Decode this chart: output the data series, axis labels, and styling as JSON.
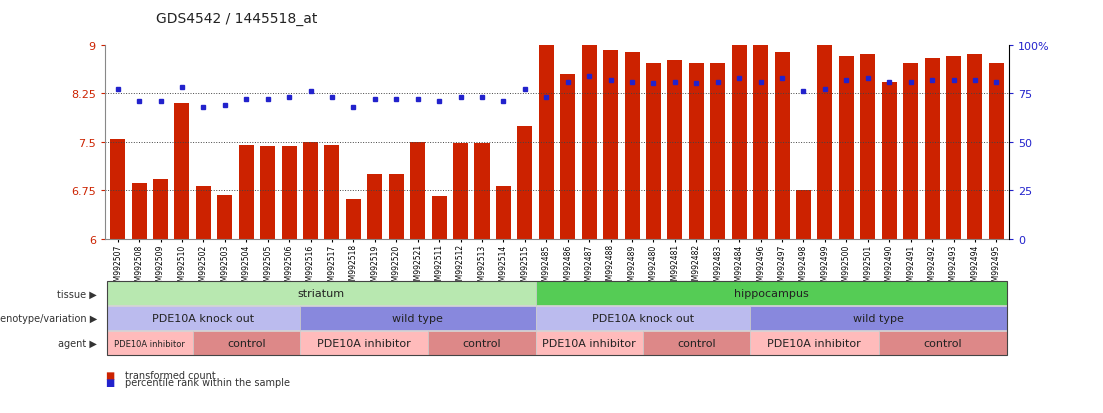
{
  "title": "GDS4542 / 1445518_at",
  "samples": [
    "GSM992507",
    "GSM992508",
    "GSM992509",
    "GSM992510",
    "GSM992502",
    "GSM992503",
    "GSM992504",
    "GSM992505",
    "GSM992506",
    "GSM992516",
    "GSM992517",
    "GSM992518",
    "GSM992519",
    "GSM992520",
    "GSM992521",
    "GSM992511",
    "GSM992512",
    "GSM992513",
    "GSM992514",
    "GSM992515",
    "GSM992485",
    "GSM992486",
    "GSM992487",
    "GSM992488",
    "GSM992489",
    "GSM992480",
    "GSM992481",
    "GSM992482",
    "GSM992483",
    "GSM992484",
    "GSM992496",
    "GSM992497",
    "GSM992498",
    "GSM992499",
    "GSM992500",
    "GSM992501",
    "GSM992490",
    "GSM992491",
    "GSM992492",
    "GSM992493",
    "GSM992494",
    "GSM992495"
  ],
  "bar_values": [
    7.55,
    6.87,
    6.92,
    8.1,
    6.82,
    6.68,
    7.45,
    7.44,
    7.44,
    7.5,
    7.45,
    6.62,
    7.0,
    7.0,
    7.5,
    6.67,
    7.48,
    7.48,
    6.82,
    7.75,
    9.0,
    8.55,
    9.05,
    8.92,
    8.88,
    8.72,
    8.76,
    8.72,
    8.72,
    9.0,
    9.02,
    8.88,
    6.75,
    9.05,
    8.82,
    8.85,
    8.42,
    8.72,
    8.8,
    8.82,
    8.85,
    8.72
  ],
  "percentile_values": [
    77,
    71,
    71,
    78,
    68,
    69,
    72,
    72,
    73,
    76,
    73,
    68,
    72,
    72,
    72,
    71,
    73,
    73,
    71,
    77,
    73,
    81,
    84,
    82,
    81,
    80,
    81,
    80,
    81,
    83,
    81,
    83,
    76,
    77,
    82,
    83,
    81,
    81,
    82,
    82,
    82,
    81
  ],
  "ylim": [
    6,
    9
  ],
  "yticks": [
    6,
    6.75,
    7.5,
    8.25,
    9
  ],
  "ytick_labels": [
    "6",
    "6.75",
    "7.5",
    "8.25",
    "9"
  ],
  "right_yticks": [
    0,
    25,
    50,
    75,
    100
  ],
  "right_ytick_labels": [
    "0",
    "25",
    "50",
    "75",
    "100%"
  ],
  "bar_color": "#cc2200",
  "dot_color": "#2222cc",
  "background_color": "#ffffff",
  "tissue_groups": [
    {
      "label": "striatum",
      "start": 0,
      "end": 19,
      "color": "#b8e8b0"
    },
    {
      "label": "hippocampus",
      "start": 20,
      "end": 41,
      "color": "#55cc55"
    }
  ],
  "genotype_groups": [
    {
      "label": "PDE10A knock out",
      "start": 0,
      "end": 8,
      "color": "#bbbbee"
    },
    {
      "label": "wild type",
      "start": 9,
      "end": 19,
      "color": "#8888dd"
    },
    {
      "label": "PDE10A knock out",
      "start": 20,
      "end": 29,
      "color": "#bbbbee"
    },
    {
      "label": "wild type",
      "start": 30,
      "end": 41,
      "color": "#8888dd"
    }
  ],
  "agent_groups": [
    {
      "label": "PDE10A inhibitor",
      "start": 0,
      "end": 3,
      "color": "#ffbbbb",
      "fontsize": 6
    },
    {
      "label": "control",
      "start": 4,
      "end": 8,
      "color": "#dd8888",
      "fontsize": 8
    },
    {
      "label": "PDE10A inhibitor",
      "start": 9,
      "end": 14,
      "color": "#ffbbbb",
      "fontsize": 8
    },
    {
      "label": "control",
      "start": 15,
      "end": 19,
      "color": "#dd8888",
      "fontsize": 8
    },
    {
      "label": "PDE10A inhibitor",
      "start": 20,
      "end": 24,
      "color": "#ffbbbb",
      "fontsize": 8
    },
    {
      "label": "control",
      "start": 25,
      "end": 29,
      "color": "#dd8888",
      "fontsize": 8
    },
    {
      "label": "PDE10A inhibitor",
      "start": 30,
      "end": 35,
      "color": "#ffbbbb",
      "fontsize": 8
    },
    {
      "label": "control",
      "start": 36,
      "end": 41,
      "color": "#dd8888",
      "fontsize": 8
    }
  ],
  "row_labels": [
    "tissue",
    "genotype/variation",
    "agent"
  ],
  "legend_items": [
    {
      "label": "transformed count",
      "color": "#cc2200"
    },
    {
      "label": "percentile rank within the sample",
      "color": "#2222cc"
    }
  ]
}
